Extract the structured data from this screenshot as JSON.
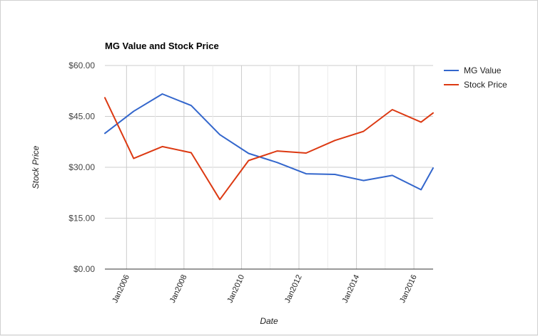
{
  "chart_data": {
    "type": "line",
    "title": "MG Value and Stock Price",
    "xlabel": "Date",
    "ylabel": "Stock Price",
    "ylim": [
      0,
      60
    ],
    "yticks": [
      "$0.00",
      "$15.00",
      "$30.00",
      "$45.00",
      "$60.00"
    ],
    "ytick_values": [
      0,
      15,
      30,
      45,
      60
    ],
    "xlim": [
      "2005-04-01",
      "2016-09-01"
    ],
    "xticks": [
      "Jan2006",
      "Jan2008",
      "Jan2010",
      "Jan2012",
      "Jan2014",
      "Jan2016"
    ],
    "xtick_dates": [
      "2006-01-01",
      "2008-01-01",
      "2010-01-01",
      "2012-01-01",
      "2014-01-01",
      "2016-01-01"
    ],
    "grid": true,
    "legend": "right",
    "series": [
      {
        "name": "MG Value",
        "color": "#3366cc",
        "points": [
          [
            "2005-04-01",
            40.0
          ],
          [
            "2006-04-01",
            46.5
          ],
          [
            "2007-04-01",
            51.6
          ],
          [
            "2008-04-01",
            48.2
          ],
          [
            "2009-04-01",
            39.6
          ],
          [
            "2010-04-01",
            34.1
          ],
          [
            "2011-04-01",
            31.4
          ],
          [
            "2012-04-01",
            28.1
          ],
          [
            "2013-04-01",
            27.9
          ],
          [
            "2014-04-01",
            26.1
          ],
          [
            "2015-04-01",
            27.6
          ],
          [
            "2016-04-01",
            23.4
          ],
          [
            "2016-09-01",
            29.8
          ]
        ]
      },
      {
        "name": "Stock Price",
        "color": "#dc3912",
        "points": [
          [
            "2005-04-01",
            50.5
          ],
          [
            "2006-04-01",
            32.6
          ],
          [
            "2007-04-01",
            36.1
          ],
          [
            "2008-04-01",
            34.3
          ],
          [
            "2009-04-01",
            20.5
          ],
          [
            "2010-04-01",
            32.0
          ],
          [
            "2011-04-01",
            34.8
          ],
          [
            "2012-04-01",
            34.2
          ],
          [
            "2013-04-01",
            37.9
          ],
          [
            "2014-04-01",
            40.6
          ],
          [
            "2015-04-01",
            47.0
          ],
          [
            "2016-04-01",
            43.3
          ],
          [
            "2016-09-01",
            46.0
          ]
        ]
      }
    ]
  }
}
